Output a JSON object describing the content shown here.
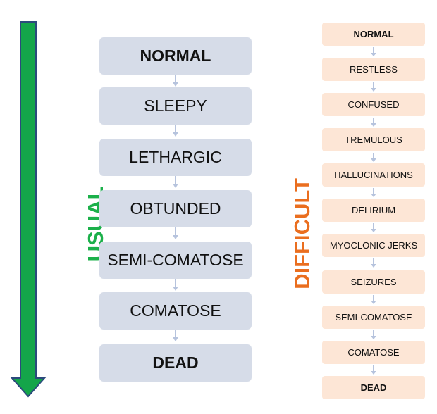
{
  "colors": {
    "arrow_fill": "#14a54a",
    "arrow_stroke": "#2b4a7c",
    "usual_label": "#1bb04a",
    "difficult_label": "#ea6e1f",
    "usual_box": "#d6dce8",
    "difficult_box": "#fde6d6",
    "connector": "#b6c3dd"
  },
  "usual": {
    "label": "USUAL",
    "steps": [
      "NORMAL",
      "SLEEPY",
      "LETHARGIC",
      "OBTUNDED",
      "SEMI-COMATOSE",
      "COMATOSE",
      "DEAD"
    ]
  },
  "difficult": {
    "label": "DIFFICULT",
    "steps": [
      "NORMAL",
      "RESTLESS",
      "CONFUSED",
      "TREMULOUS",
      "HALLUCINATIONS",
      "DELIRIUM",
      "MYOCLONIC JERKS",
      "SEIZURES",
      "SEMI-COMATOSE",
      "COMATOSE",
      "DEAD"
    ]
  }
}
